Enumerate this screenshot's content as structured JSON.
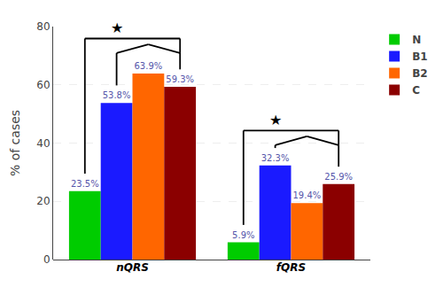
{
  "chart_data": {
    "type": "bar",
    "categories": [
      "nQRS",
      "fQRS"
    ],
    "series": [
      {
        "name": "N",
        "color": "#00cc00",
        "values": [
          23.5,
          5.9
        ],
        "value_labels": [
          "23.5%",
          "5.9%"
        ]
      },
      {
        "name": "B1",
        "color": "#1a1aff",
        "values": [
          53.8,
          32.3
        ],
        "value_labels": [
          "53.8%",
          "32.3%"
        ]
      },
      {
        "name": "B2",
        "color": "#ff6600",
        "values": [
          63.9,
          19.4
        ],
        "value_labels": [
          "63.9%",
          "19.4%"
        ]
      },
      {
        "name": "C",
        "color": "#8b0000",
        "values": [
          59.3,
          25.9
        ],
        "value_labels": [
          "59.3%",
          "25.9%"
        ]
      }
    ],
    "ylabel": "% of cases",
    "ylim": [
      0,
      80
    ],
    "yticks": [
      0,
      20,
      40,
      60,
      80
    ],
    "grid": true,
    "legend": "right",
    "data_labels": true,
    "annotations": [
      {
        "text": "★",
        "category": "nQRS"
      },
      {
        "text": "★",
        "category": "fQRS"
      }
    ]
  }
}
